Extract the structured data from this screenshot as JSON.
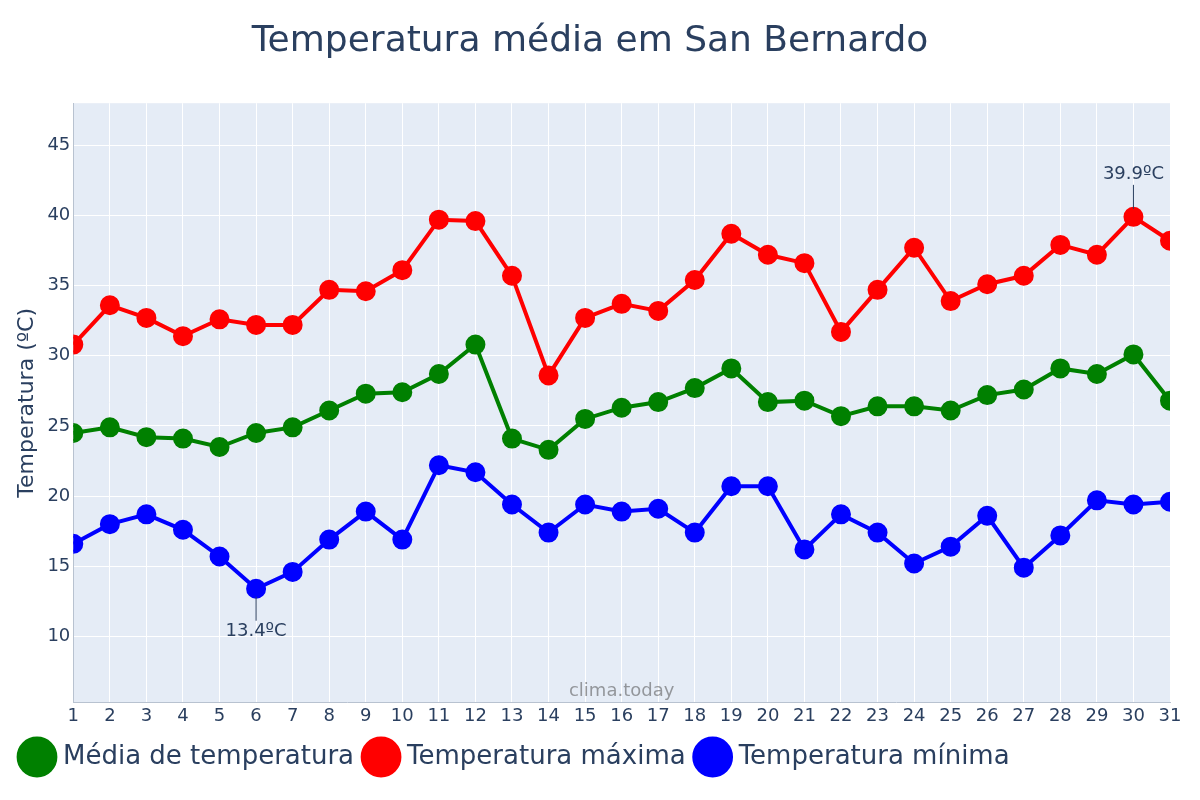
{
  "chart_data": {
    "type": "line",
    "title": "Temperatura média em San Bernardo",
    "y_label": "Temperatura (ºC)",
    "source": "clima.today",
    "x": [
      1,
      2,
      3,
      4,
      5,
      6,
      7,
      8,
      9,
      10,
      11,
      12,
      13,
      14,
      15,
      16,
      17,
      18,
      19,
      20,
      21,
      22,
      23,
      24,
      25,
      26,
      27,
      28,
      29,
      30,
      31
    ],
    "xlim": [
      1,
      31
    ],
    "xticks": [
      1,
      2,
      3,
      4,
      5,
      6,
      7,
      8,
      9,
      10,
      11,
      12,
      13,
      14,
      15,
      16,
      17,
      18,
      19,
      20,
      21,
      22,
      23,
      24,
      25,
      26,
      27,
      28,
      29,
      30,
      31
    ],
    "ylim": [
      5.3,
      48
    ],
    "yticks": [
      10,
      15,
      20,
      25,
      30,
      35,
      40,
      45
    ],
    "grid": true,
    "legend": "bottom",
    "series": [
      {
        "name": "Média de temperatura",
        "color": "#008000",
        "marker": "circle",
        "values": [
          24.5,
          24.9,
          24.2,
          24.1,
          23.5,
          24.5,
          24.9,
          26.1,
          27.3,
          27.4,
          28.7,
          30.8,
          24.1,
          23.3,
          25.5,
          26.3,
          26.7,
          27.7,
          29.1,
          26.7,
          26.8,
          25.7,
          26.4,
          26.4,
          26.1,
          27.2,
          27.6,
          29.1,
          28.7,
          30.1,
          26.8
        ]
      },
      {
        "name": "Temperatura máxima",
        "color": "#ff0000",
        "marker": "circle",
        "values": [
          30.8,
          33.6,
          32.7,
          31.4,
          32.6,
          32.2,
          32.2,
          34.7,
          34.6,
          36.1,
          39.7,
          39.6,
          35.7,
          28.6,
          32.7,
          33.7,
          33.2,
          35.4,
          38.7,
          37.2,
          36.6,
          31.7,
          34.7,
          37.7,
          33.9,
          35.1,
          35.7,
          37.9,
          37.2,
          39.9,
          38.2
        ]
      },
      {
        "name": "Temperatura mínima",
        "color": "#0000ff",
        "marker": "circle",
        "values": [
          16.6,
          18.0,
          18.7,
          17.6,
          15.7,
          13.4,
          14.6,
          16.9,
          18.9,
          16.9,
          22.2,
          21.7,
          19.4,
          17.4,
          19.4,
          18.9,
          19.1,
          17.4,
          20.7,
          20.7,
          16.2,
          18.7,
          17.4,
          15.2,
          16.4,
          18.6,
          14.9,
          17.2,
          19.7,
          19.4,
          19.6
        ]
      }
    ],
    "annotations": [
      {
        "x": 30,
        "y": 39.9,
        "text": "39.9ºC"
      },
      {
        "x": 6,
        "y": 13.4,
        "text": "13.4ºC"
      }
    ]
  }
}
